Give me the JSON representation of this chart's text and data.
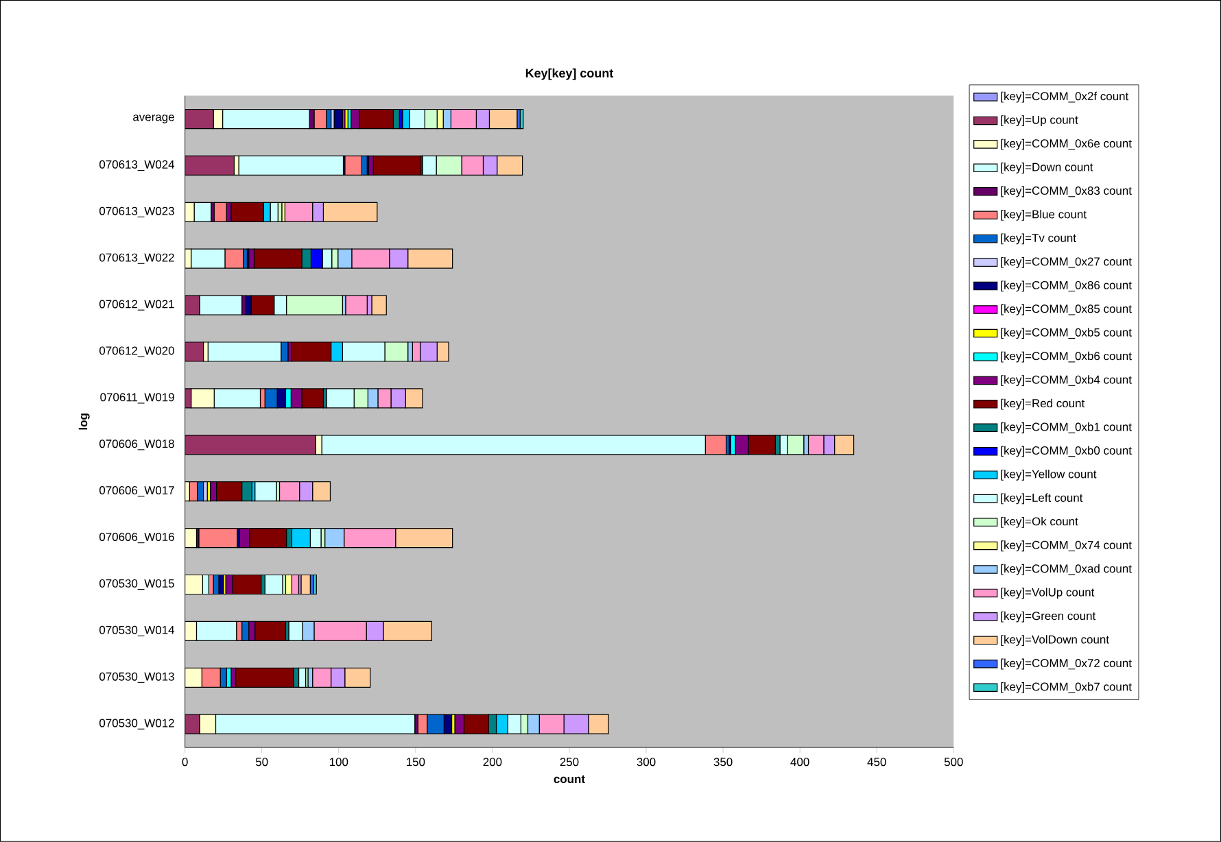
{
  "chart_data": {
    "type": "bar",
    "orientation": "horizontal",
    "stacked": true,
    "title": "Key[key] count",
    "xlabel": "count",
    "ylabel": "log",
    "categories": [
      "average",
      "070613_W024",
      "070613_W023",
      "070613_W022",
      "070612_W021",
      "070612_W020",
      "070611_W019",
      "070606_W018",
      "070606_W017",
      "070606_W016",
      "070530_W015",
      "070530_W014",
      "070530_W013",
      "070530_W012"
    ],
    "xlim": [
      0,
      500
    ],
    "xticks": [
      0,
      50,
      100,
      150,
      200,
      250,
      300,
      350,
      400,
      450,
      500
    ],
    "legend": "right",
    "series": [
      {
        "name": "[key]=COMM_0x2f count",
        "color": "#9999ff",
        "values": [
          0,
          0,
          0,
          0,
          0,
          0,
          0,
          0,
          0,
          0,
          0,
          0,
          0,
          0
        ]
      },
      {
        "name": "[key]=Up count",
        "color": "#993366",
        "values": [
          18.5,
          32,
          0,
          0,
          9.5,
          12,
          4,
          85,
          0,
          0,
          0,
          0,
          0,
          9.5
        ]
      },
      {
        "name": "[key]=COMM_0x6e count",
        "color": "#ffffcc",
        "values": [
          6,
          3,
          6,
          4,
          0,
          3,
          15,
          4,
          3,
          7.5,
          11.5,
          7.5,
          11,
          10.5
        ]
      },
      {
        "name": "[key]=Down count",
        "color": "#ccffff",
        "values": [
          56.5,
          68,
          11,
          22,
          27.5,
          47.5,
          30,
          249.5,
          0,
          0,
          4,
          26,
          0,
          129.5
        ]
      },
      {
        "name": "[key]=COMM_0x83 count",
        "color": "#660066",
        "values": [
          3,
          1,
          2,
          0,
          2.5,
          0,
          0,
          0,
          0,
          1.5,
          0,
          0,
          0,
          2
        ]
      },
      {
        "name": "[key]=Blue count",
        "color": "#ff8080",
        "values": [
          8,
          11,
          8,
          12,
          0,
          0,
          3,
          13.5,
          5,
          25,
          3,
          3.5,
          12,
          6
        ]
      },
      {
        "name": "[key]=Tv count",
        "color": "#0066cc",
        "values": [
          3,
          3.5,
          0,
          2.5,
          0,
          4.5,
          8,
          2,
          4,
          0,
          3.5,
          4.5,
          4,
          11
        ]
      },
      {
        "name": "[key]=COMM_0x27 count",
        "color": "#ccccff",
        "values": [
          2,
          0,
          0,
          0,
          0,
          0,
          0,
          0,
          2.5,
          0,
          0,
          0,
          0,
          0
        ]
      },
      {
        "name": "[key]=COMM_0x86 count",
        "color": "#000080",
        "values": [
          5.5,
          1,
          0,
          1,
          3.5,
          0,
          5.5,
          1,
          0,
          1.5,
          3,
          0,
          0,
          5
        ]
      },
      {
        "name": "[key]=COMM_0x85 count",
        "color": "#ff00ff",
        "values": [
          1.5,
          0,
          0,
          0,
          0,
          0,
          0,
          0,
          0,
          0,
          0,
          0,
          0,
          0
        ]
      },
      {
        "name": "[key]=COMM_0xb5 count",
        "color": "#ffff00",
        "values": [
          2,
          0,
          0,
          0,
          0,
          0,
          0,
          0,
          2,
          0,
          1.5,
          0,
          0,
          2
        ]
      },
      {
        "name": "[key]=COMM_0xb6 count",
        "color": "#00ffff",
        "values": [
          2,
          0,
          0,
          0,
          0,
          0,
          3.5,
          3,
          0,
          0,
          0,
          0,
          3,
          0
        ]
      },
      {
        "name": "[key]=COMM_0xb4 count",
        "color": "#800080",
        "values": [
          5.5,
          3,
          3,
          3.5,
          0,
          2.5,
          7,
          8.5,
          4,
          6.5,
          4.5,
          4,
          3,
          6
        ]
      },
      {
        "name": "[key]=Red count",
        "color": "#800000",
        "values": [
          22,
          31,
          21,
          31,
          15,
          25.5,
          14,
          17.5,
          16.5,
          24,
          18.5,
          20,
          37.5,
          16
        ]
      },
      {
        "name": "[key]=COMM_0xb1 count",
        "color": "#008080",
        "values": [
          4,
          1,
          0,
          6,
          0,
          0,
          2,
          3,
          6.5,
          3.5,
          2.5,
          2,
          3.5,
          5
        ]
      },
      {
        "name": "[key]=COMM_0xb0 count",
        "color": "#0000ff",
        "values": [
          2,
          0,
          0,
          7.5,
          0,
          0,
          0,
          0,
          0,
          0,
          0,
          0,
          0,
          0
        ]
      },
      {
        "name": "[key]=Yellow count",
        "color": "#00ccff",
        "values": [
          4.5,
          0,
          4.5,
          0,
          0,
          7.5,
          0,
          0,
          2,
          12,
          0,
          0,
          0,
          7.5
        ]
      },
      {
        "name": "[key]=Left count",
        "color": "#ccffff",
        "values": [
          10,
          9,
          5,
          6,
          8,
          27.5,
          18,
          5,
          14,
          7,
          11.5,
          9,
          4.5,
          8.5
        ]
      },
      {
        "name": "[key]=Ok count",
        "color": "#ccffcc",
        "values": [
          8,
          16.5,
          2.5,
          4,
          36.5,
          15,
          9,
          10.5,
          2,
          2.5,
          2,
          0,
          1.5,
          4.5
        ]
      },
      {
        "name": "[key]=COMM_0x74 count",
        "color": "#ffff99",
        "values": [
          4,
          0,
          2,
          0,
          0,
          0,
          0,
          0,
          0,
          0,
          4,
          0,
          0,
          0
        ]
      },
      {
        "name": "[key]=COMM_0xad count",
        "color": "#99ccff",
        "values": [
          5,
          0,
          0,
          9,
          2,
          3,
          6.5,
          3,
          0,
          12.5,
          0,
          7.5,
          3,
          7.5
        ]
      },
      {
        "name": "[key]=VolUp count",
        "color": "#ff99cc",
        "values": [
          16.5,
          14,
          18,
          24.5,
          14,
          5,
          8.5,
          10,
          13,
          33.5,
          4.5,
          34,
          12,
          16
        ]
      },
      {
        "name": "[key]=Green count",
        "color": "#cc99ff",
        "values": [
          8.5,
          9,
          7,
          12,
          3,
          11,
          9.5,
          7,
          8.5,
          0,
          1.5,
          11,
          9,
          16
        ]
      },
      {
        "name": "[key]=VolDown count",
        "color": "#ffcc99",
        "values": [
          18,
          16.5,
          35,
          29,
          9.5,
          7.5,
          11,
          12.5,
          11.5,
          37,
          6,
          31.5,
          16.5,
          13
        ]
      },
      {
        "name": "[key]=COMM_0x72 count",
        "color": "#3366ff",
        "values": [
          2,
          0,
          0,
          0,
          0,
          0,
          0,
          0,
          0,
          0,
          2,
          0,
          0,
          0
        ]
      },
      {
        "name": "[key]=COMM_0xb7 count",
        "color": "#33cccc",
        "values": [
          2,
          0,
          0,
          0,
          0,
          0,
          0,
          0,
          0,
          0,
          2,
          0,
          0,
          0
        ]
      }
    ]
  }
}
